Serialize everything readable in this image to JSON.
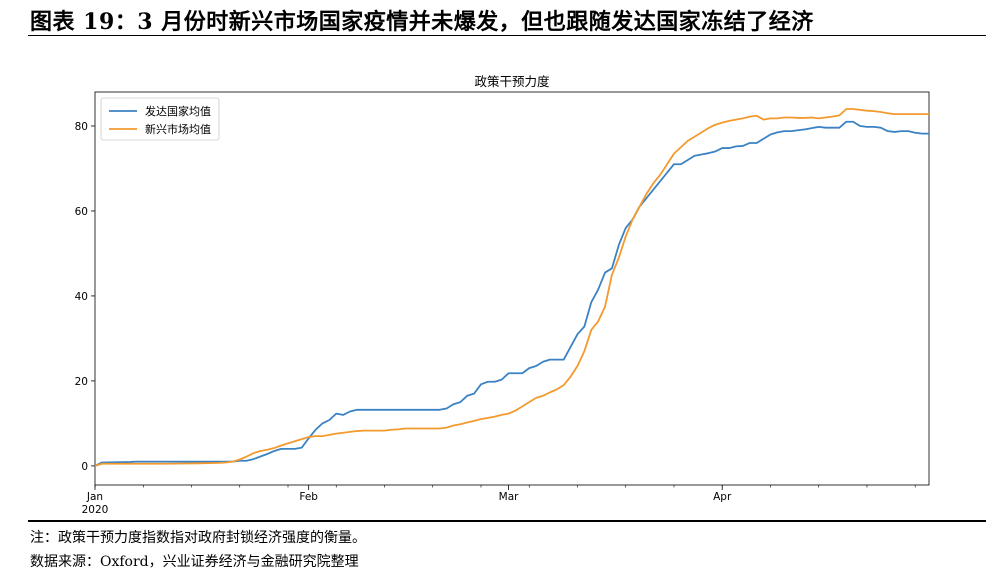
{
  "header": {
    "title": "图表 19：3 月份时新兴市场国家疫情并未爆发，但也跟随发达国家冻结了经济"
  },
  "footer": {
    "note": "注：政策干预力度指数指对政府封锁经济强度的衡量。",
    "source": "数据来源：Oxford，兴业证券经济与金融研究院整理"
  },
  "colors": {
    "developed": "#3b82c4",
    "emerging": "#f39a2e"
  },
  "chart_data": {
    "type": "line",
    "title": "政策干预力度",
    "xlabel": "",
    "ylabel": "",
    "x_tick_labels": [
      {
        "label": "Jan",
        "sublabel": "2020",
        "day": 0
      },
      {
        "label": "Feb",
        "sublabel": "",
        "day": 31
      },
      {
        "label": "Mar",
        "sublabel": "",
        "day": 60
      },
      {
        "label": "Apr",
        "sublabel": "",
        "day": 91
      }
    ],
    "y_ticks": [
      0,
      20,
      40,
      60,
      80
    ],
    "xlim": [
      0,
      121
    ],
    "ylim": [
      -4.5,
      88
    ],
    "legend_position": "top-left",
    "grid": false,
    "series": [
      {
        "name": "发达国家均值",
        "color": "#3b82c4",
        "points": [
          [
            0,
            0
          ],
          [
            1,
            0.8
          ],
          [
            5,
            0.9
          ],
          [
            6,
            1.0
          ],
          [
            20,
            1.0
          ],
          [
            21,
            1.2
          ],
          [
            22,
            1.2
          ],
          [
            23,
            1.6
          ],
          [
            24,
            2.2
          ],
          [
            25,
            2.8
          ],
          [
            26,
            3.5
          ],
          [
            27,
            4.0
          ],
          [
            28,
            4.0
          ],
          [
            29,
            4.0
          ],
          [
            30,
            4.3
          ],
          [
            31,
            6.5
          ],
          [
            32,
            8.5
          ],
          [
            33,
            10.0
          ],
          [
            34,
            10.8
          ],
          [
            35,
            12.3
          ],
          [
            36,
            12.0
          ],
          [
            37,
            12.8
          ],
          [
            38,
            13.2
          ],
          [
            39,
            13.2
          ],
          [
            45,
            13.2
          ],
          [
            50,
            13.2
          ],
          [
            51,
            13.5
          ],
          [
            52,
            14.5
          ],
          [
            53,
            15.0
          ],
          [
            54,
            16.5
          ],
          [
            55,
            17.0
          ],
          [
            56,
            19.2
          ],
          [
            57,
            19.8
          ],
          [
            58,
            19.8
          ],
          [
            59,
            20.3
          ],
          [
            60,
            21.8
          ],
          [
            61,
            21.8
          ],
          [
            62,
            21.8
          ],
          [
            63,
            23.0
          ],
          [
            64,
            23.5
          ],
          [
            65,
            24.5
          ],
          [
            66,
            25.0
          ],
          [
            67,
            25.0
          ],
          [
            68,
            25.0
          ],
          [
            69,
            28.0
          ],
          [
            70,
            31.0
          ],
          [
            71,
            32.8
          ],
          [
            72,
            38.5
          ],
          [
            73,
            41.5
          ],
          [
            74,
            45.5
          ],
          [
            75,
            46.5
          ],
          [
            76,
            52.0
          ],
          [
            77,
            56.0
          ],
          [
            78,
            58.0
          ],
          [
            79,
            61.0
          ],
          [
            80,
            63.0
          ],
          [
            81,
            65.0
          ],
          [
            82,
            67.0
          ],
          [
            83,
            69.0
          ],
          [
            84,
            71.0
          ],
          [
            85,
            71.0
          ],
          [
            86,
            72.0
          ],
          [
            87,
            73.0
          ],
          [
            88,
            73.3
          ],
          [
            89,
            73.6
          ],
          [
            90,
            74.0
          ],
          [
            91,
            74.8
          ],
          [
            92,
            74.8
          ],
          [
            93,
            75.2
          ],
          [
            94,
            75.3
          ],
          [
            95,
            76.0
          ],
          [
            96,
            76.0
          ],
          [
            97,
            77.0
          ],
          [
            98,
            78.0
          ],
          [
            99,
            78.5
          ],
          [
            100,
            78.8
          ],
          [
            101,
            78.8
          ],
          [
            102,
            79.0
          ],
          [
            103,
            79.2
          ],
          [
            104,
            79.5
          ],
          [
            105,
            79.8
          ],
          [
            106,
            79.6
          ],
          [
            107,
            79.6
          ],
          [
            108,
            79.6
          ],
          [
            109,
            81.0
          ],
          [
            110,
            81.0
          ],
          [
            111,
            80.0
          ],
          [
            112,
            79.8
          ],
          [
            113,
            79.8
          ],
          [
            114,
            79.6
          ],
          [
            115,
            78.8
          ],
          [
            116,
            78.6
          ],
          [
            117,
            78.8
          ],
          [
            118,
            78.8
          ],
          [
            119,
            78.4
          ],
          [
            120,
            78.2
          ],
          [
            121,
            78.2
          ]
        ]
      },
      {
        "name": "新兴市场均值",
        "color": "#f39a2e",
        "points": [
          [
            0,
            0
          ],
          [
            1,
            0.5
          ],
          [
            10,
            0.5
          ],
          [
            15,
            0.6
          ],
          [
            18,
            0.7
          ],
          [
            19,
            0.8
          ],
          [
            20,
            1.0
          ],
          [
            21,
            1.5
          ],
          [
            22,
            2.2
          ],
          [
            23,
            3.0
          ],
          [
            24,
            3.5
          ],
          [
            25,
            3.8
          ],
          [
            26,
            4.2
          ],
          [
            27,
            4.8
          ],
          [
            28,
            5.3
          ],
          [
            29,
            5.8
          ],
          [
            30,
            6.3
          ],
          [
            31,
            6.8
          ],
          [
            32,
            7.0
          ],
          [
            33,
            7.0
          ],
          [
            34,
            7.3
          ],
          [
            35,
            7.6
          ],
          [
            36,
            7.8
          ],
          [
            37,
            8.0
          ],
          [
            38,
            8.2
          ],
          [
            39,
            8.3
          ],
          [
            42,
            8.3
          ],
          [
            43,
            8.5
          ],
          [
            44,
            8.6
          ],
          [
            45,
            8.8
          ],
          [
            50,
            8.8
          ],
          [
            51,
            9.0
          ],
          [
            52,
            9.5
          ],
          [
            53,
            9.8
          ],
          [
            54,
            10.2
          ],
          [
            55,
            10.6
          ],
          [
            56,
            11.0
          ],
          [
            57,
            11.3
          ],
          [
            58,
            11.6
          ],
          [
            59,
            12.0
          ],
          [
            60,
            12.3
          ],
          [
            61,
            13.0
          ],
          [
            62,
            14.0
          ],
          [
            63,
            15.0
          ],
          [
            64,
            16.0
          ],
          [
            65,
            16.5
          ],
          [
            66,
            17.3
          ],
          [
            67,
            18.0
          ],
          [
            68,
            19.0
          ],
          [
            69,
            21.0
          ],
          [
            70,
            23.5
          ],
          [
            71,
            27.0
          ],
          [
            72,
            32.0
          ],
          [
            73,
            34.0
          ],
          [
            74,
            37.5
          ],
          [
            75,
            45.0
          ],
          [
            76,
            49.0
          ],
          [
            77,
            54.0
          ],
          [
            78,
            58.0
          ],
          [
            79,
            61.0
          ],
          [
            80,
            64.0
          ],
          [
            81,
            66.5
          ],
          [
            82,
            68.5
          ],
          [
            83,
            71.0
          ],
          [
            84,
            73.5
          ],
          [
            85,
            75.0
          ],
          [
            86,
            76.5
          ],
          [
            87,
            77.5
          ],
          [
            88,
            78.5
          ],
          [
            89,
            79.5
          ],
          [
            90,
            80.3
          ],
          [
            91,
            80.8
          ],
          [
            92,
            81.2
          ],
          [
            93,
            81.5
          ],
          [
            94,
            81.8
          ],
          [
            95,
            82.2
          ],
          [
            96,
            82.4
          ],
          [
            97,
            81.5
          ],
          [
            98,
            81.8
          ],
          [
            99,
            81.8
          ],
          [
            100,
            82.0
          ],
          [
            101,
            82.0
          ],
          [
            102,
            81.9
          ],
          [
            103,
            81.9
          ],
          [
            104,
            82.0
          ],
          [
            105,
            81.8
          ],
          [
            106,
            82.0
          ],
          [
            107,
            82.2
          ],
          [
            108,
            82.5
          ],
          [
            109,
            84.0
          ],
          [
            110,
            84.0
          ],
          [
            111,
            83.8
          ],
          [
            112,
            83.6
          ],
          [
            113,
            83.5
          ],
          [
            114,
            83.3
          ],
          [
            115,
            83.0
          ],
          [
            116,
            82.8
          ],
          [
            117,
            82.8
          ],
          [
            118,
            82.8
          ],
          [
            119,
            82.8
          ],
          [
            120,
            82.8
          ],
          [
            121,
            82.8
          ]
        ]
      }
    ]
  }
}
